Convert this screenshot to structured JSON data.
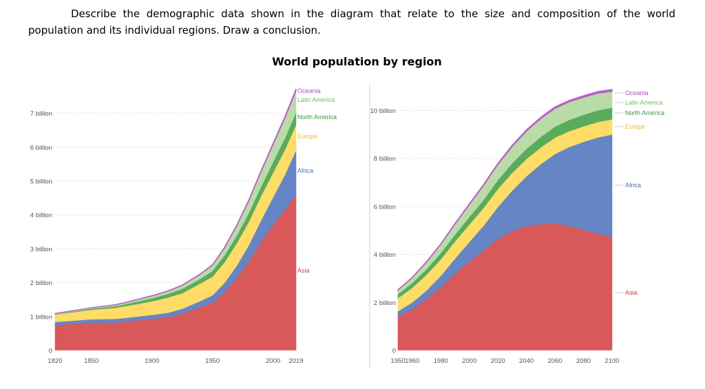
{
  "task_text": "Describe the demographic data shown in the diagram that relate to the size and composition of the world population and its individual regions. Draw a conclusion.",
  "figure_title": "World population by region",
  "colors": {
    "Asia": "#d9585a",
    "Africa": "#6585c4",
    "Europe": "#fedc68",
    "North America": "#5aac5c",
    "Latin America": "#b9dba8",
    "Oceania": "#b85fc7"
  },
  "label_colors": {
    "Asia": "#cc3b3f",
    "Africa": "#4a6fb8",
    "Europe": "#e6bd2a",
    "North America": "#3f9444",
    "Latin America": "#72bd63",
    "Oceania": "#b24fc4"
  },
  "chart_data": [
    {
      "type": "area",
      "stacked": true,
      "x": [
        1820,
        1850,
        1870,
        1880,
        1900,
        1913,
        1925,
        1940,
        1950,
        1960,
        1970,
        1980,
        1990,
        2000,
        2010,
        2019
      ],
      "series": [
        {
          "name": "Asia",
          "values": [
            0.75,
            0.82,
            0.82,
            0.86,
            0.93,
            0.98,
            1.08,
            1.28,
            1.4,
            1.72,
            2.14,
            2.63,
            3.2,
            3.71,
            4.16,
            4.6
          ]
        },
        {
          "name": "Africa",
          "values": [
            0.09,
            0.1,
            0.11,
            0.11,
            0.12,
            0.13,
            0.15,
            0.18,
            0.23,
            0.28,
            0.36,
            0.48,
            0.63,
            0.81,
            1.04,
            1.31
          ]
        },
        {
          "name": "Europe",
          "values": [
            0.22,
            0.28,
            0.33,
            0.35,
            0.4,
            0.45,
            0.46,
            0.52,
            0.55,
            0.61,
            0.66,
            0.69,
            0.72,
            0.73,
            0.74,
            0.75
          ]
        },
        {
          "name": "North America",
          "values": [
            0.01,
            0.03,
            0.05,
            0.06,
            0.09,
            0.11,
            0.13,
            0.14,
            0.17,
            0.2,
            0.23,
            0.26,
            0.28,
            0.31,
            0.34,
            0.37
          ]
        },
        {
          "name": "Latin America",
          "values": [
            0.02,
            0.03,
            0.04,
            0.05,
            0.07,
            0.08,
            0.1,
            0.13,
            0.17,
            0.22,
            0.29,
            0.36,
            0.44,
            0.52,
            0.6,
            0.65
          ]
        },
        {
          "name": "Oceania",
          "values": [
            0.002,
            0.002,
            0.003,
            0.004,
            0.006,
            0.008,
            0.009,
            0.011,
            0.013,
            0.016,
            0.02,
            0.023,
            0.027,
            0.031,
            0.037,
            0.042
          ]
        }
      ],
      "xlim": [
        1820,
        2019
      ],
      "ylim": [
        0,
        7.7
      ],
      "x_ticks": [
        1820,
        1850,
        1900,
        1950,
        2000,
        2019
      ],
      "y_ticks": [
        0,
        1,
        2,
        3,
        4,
        5,
        6,
        7
      ],
      "y_tick_labels": [
        "0",
        "1 billion",
        "2 billion",
        "3 billion",
        "4 billion",
        "5 billion",
        "6 billion",
        "7 billion"
      ],
      "grid": true
    },
    {
      "type": "area",
      "stacked": true,
      "x": [
        1950,
        1960,
        1970,
        1980,
        1990,
        2000,
        2010,
        2020,
        2030,
        2040,
        2050,
        2060,
        2070,
        2080,
        2090,
        2100
      ],
      "series": [
        {
          "name": "Asia",
          "values": [
            1.4,
            1.72,
            2.14,
            2.63,
            3.2,
            3.71,
            4.16,
            4.64,
            4.97,
            5.18,
            5.27,
            5.29,
            5.19,
            5.03,
            4.87,
            4.72
          ]
        },
        {
          "name": "Africa",
          "values": [
            0.23,
            0.28,
            0.36,
            0.48,
            0.63,
            0.81,
            1.04,
            1.34,
            1.69,
            2.08,
            2.49,
            2.9,
            3.29,
            3.66,
            4.01,
            4.28
          ]
        },
        {
          "name": "Europe",
          "values": [
            0.55,
            0.61,
            0.66,
            0.69,
            0.72,
            0.73,
            0.74,
            0.75,
            0.74,
            0.72,
            0.7,
            0.68,
            0.66,
            0.65,
            0.64,
            0.63
          ]
        },
        {
          "name": "North America",
          "values": [
            0.17,
            0.2,
            0.23,
            0.26,
            0.28,
            0.31,
            0.34,
            0.37,
            0.4,
            0.42,
            0.44,
            0.46,
            0.47,
            0.48,
            0.49,
            0.49
          ]
        },
        {
          "name": "Latin America",
          "values": [
            0.17,
            0.22,
            0.29,
            0.36,
            0.44,
            0.52,
            0.6,
            0.65,
            0.7,
            0.74,
            0.76,
            0.76,
            0.75,
            0.73,
            0.71,
            0.68
          ]
        },
        {
          "name": "Oceania",
          "values": [
            0.013,
            0.016,
            0.02,
            0.023,
            0.027,
            0.031,
            0.037,
            0.043,
            0.048,
            0.053,
            0.057,
            0.061,
            0.064,
            0.067,
            0.07,
            0.072
          ]
        }
      ],
      "xlim": [
        1950,
        2100
      ],
      "ylim": [
        0,
        10.9
      ],
      "x_ticks": [
        1950,
        1960,
        1980,
        2000,
        2020,
        2040,
        2060,
        2080,
        2100
      ],
      "y_ticks": [
        0,
        2,
        4,
        6,
        8,
        10
      ],
      "y_tick_labels": [
        "0",
        "2 billion",
        "4 billion",
        "6 billion",
        "8 billion",
        "10 billion"
      ],
      "grid": true
    }
  ]
}
